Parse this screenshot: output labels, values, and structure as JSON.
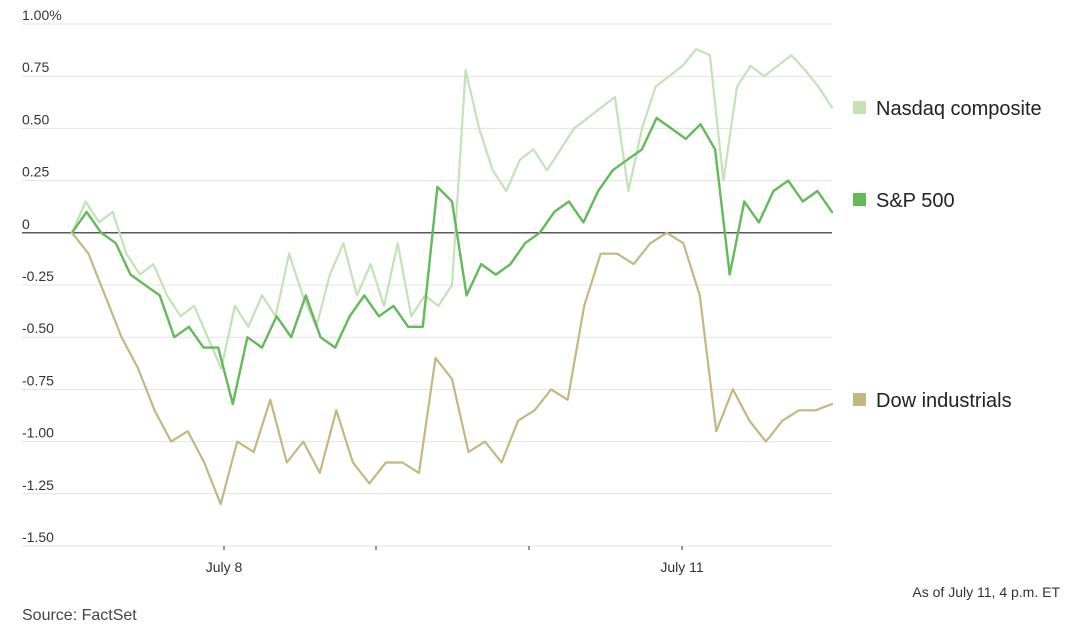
{
  "chart_data": {
    "type": "line",
    "ylim": [
      -1.5,
      1.0
    ],
    "y_ticks": [
      1.0,
      0.75,
      0.5,
      0.25,
      0,
      -0.25,
      -0.5,
      -0.75,
      -1.0,
      -1.25,
      -1.5
    ],
    "y_tick_labels": [
      "1.00%",
      "0.75",
      "0.50",
      "0.25",
      "0",
      "-0.25",
      "-0.50",
      "-0.75",
      "-1.00",
      "-1.25",
      "-1.50"
    ],
    "x_tick_labels": [
      "July 8",
      "July 11"
    ],
    "legend_position": "right",
    "series": [
      {
        "name": "Nasdaq composite",
        "color": "#c4e2b8",
        "values": [
          0,
          0.15,
          0.05,
          0.1,
          -0.1,
          -0.2,
          -0.15,
          -0.3,
          -0.4,
          -0.35,
          -0.5,
          -0.65,
          -0.35,
          -0.45,
          -0.3,
          -0.4,
          -0.1,
          -0.3,
          -0.45,
          -0.2,
          -0.05,
          -0.3,
          -0.15,
          -0.35,
          -0.05,
          -0.4,
          -0.3,
          -0.35,
          -0.25,
          0.78,
          0.5,
          0.3,
          0.2,
          0.35,
          0.4,
          0.3,
          0.4,
          0.5,
          0.55,
          0.6,
          0.65,
          0.2,
          0.5,
          0.7,
          0.75,
          0.8,
          0.88,
          0.85,
          0.25,
          0.7,
          0.8,
          0.75,
          0.8,
          0.85,
          0.78,
          0.7,
          0.6
        ]
      },
      {
        "name": "S&P 500",
        "color": "#64b95a",
        "values": [
          0,
          0.1,
          0.0,
          -0.05,
          -0.2,
          -0.25,
          -0.3,
          -0.5,
          -0.45,
          -0.55,
          -0.55,
          -0.82,
          -0.5,
          -0.55,
          -0.4,
          -0.5,
          -0.3,
          -0.5,
          -0.55,
          -0.4,
          -0.3,
          -0.4,
          -0.35,
          -0.45,
          -0.45,
          0.22,
          0.15,
          -0.3,
          -0.15,
          -0.2,
          -0.15,
          -0.05,
          0.0,
          0.1,
          0.15,
          0.05,
          0.2,
          0.3,
          0.35,
          0.4,
          0.55,
          0.5,
          0.45,
          0.52,
          0.4,
          -0.2,
          0.15,
          0.05,
          0.2,
          0.25,
          0.15,
          0.2,
          0.1
        ]
      },
      {
        "name": "Dow industrials",
        "color": "#c2b881",
        "values": [
          0,
          -0.1,
          -0.3,
          -0.5,
          -0.65,
          -0.85,
          -1.0,
          -0.95,
          -1.1,
          -1.3,
          -1.0,
          -1.05,
          -0.8,
          -1.1,
          -1.0,
          -1.15,
          -0.85,
          -1.1,
          -1.2,
          -1.1,
          -1.1,
          -1.15,
          -0.6,
          -0.7,
          -1.05,
          -1.0,
          -1.1,
          -0.9,
          -0.85,
          -0.75,
          -0.8,
          -0.35,
          -0.1,
          -0.1,
          -0.15,
          -0.05,
          0.0,
          -0.05,
          -0.3,
          -0.95,
          -0.75,
          -0.9,
          -1.0,
          -0.9,
          -0.85,
          -0.85,
          -0.82
        ]
      }
    ]
  },
  "note": "As of July 11, 4 p.m. ET",
  "source": "Source: FactSet"
}
